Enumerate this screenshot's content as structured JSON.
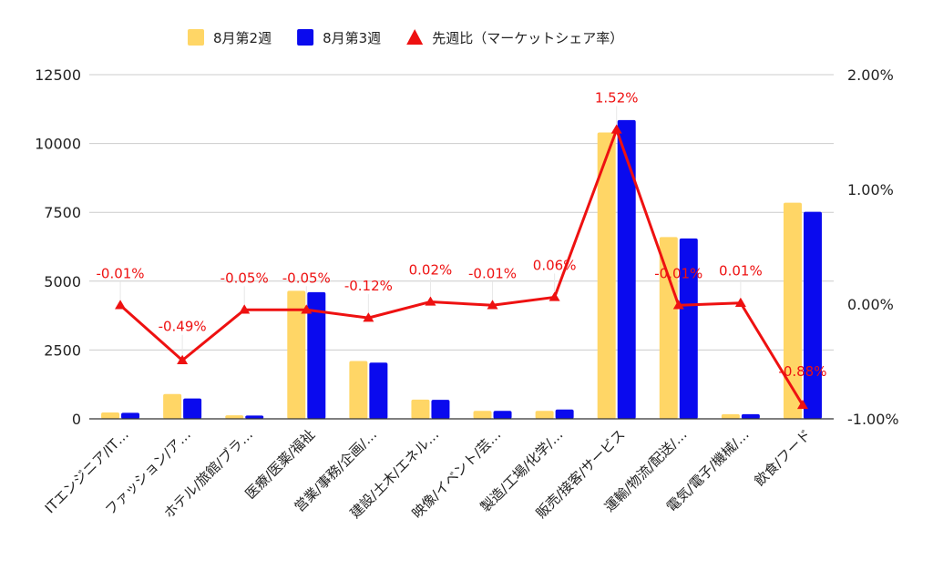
{
  "chart_data": {
    "type": "bar",
    "categories": [
      "ITエンジニア/IT…",
      "ファッション/ア…",
      "ホテル/旅館/ブラ…",
      "医療/医薬/福祉",
      "営業/事務/企画/…",
      "建設/土木/エネル…",
      "映像/イベント/芸…",
      "製造/工場/化学/…",
      "販売/接客/サービス",
      "運輸/物流/配送/…",
      "電気/電子/機械/…",
      "飲食/フード"
    ],
    "series": [
      {
        "name": "8月第2週",
        "type": "bar",
        "axis": "left",
        "color": "#FFD666",
        "values": [
          230,
          900,
          130,
          4650,
          2100,
          700,
          290,
          290,
          10400,
          6600,
          170,
          7850
        ]
      },
      {
        "name": "8月第3週",
        "type": "bar",
        "axis": "left",
        "color": "#0A0AEE",
        "values": [
          220,
          740,
          120,
          4600,
          2040,
          690,
          290,
          340,
          10850,
          6550,
          170,
          7520
        ]
      },
      {
        "name": "先週比（マーケットシェア率）",
        "type": "line",
        "axis": "right",
        "color": "#EE1111",
        "values": [
          -0.01,
          -0.49,
          -0.05,
          -0.05,
          -0.12,
          0.02,
          -0.01,
          0.06,
          1.52,
          -0.01,
          0.01,
          -0.88
        ],
        "labels": [
          "-0.01%",
          "-0.49%",
          "-0.05%",
          "-0.05%",
          "-0.12%",
          "0.02%",
          "-0.01%",
          "0.06%",
          "1.52%",
          "-0.01%",
          "0.01%",
          "-0.88%"
        ]
      }
    ],
    "y_left": {
      "ylim": [
        0,
        12500
      ],
      "ticks": [
        0,
        2500,
        5000,
        7500,
        10000,
        12500
      ],
      "tick_labels": [
        "0",
        "2500",
        "5000",
        "7500",
        "10000",
        "12500"
      ]
    },
    "y_right": {
      "ylim": [
        -1.0,
        2.0
      ],
      "ticks": [
        -1.0,
        0.0,
        1.0,
        2.0
      ],
      "tick_labels": [
        "-1.00%",
        "0.00%",
        "1.00%",
        "2.00%"
      ]
    },
    "legend": {
      "position": "top"
    },
    "grid": true,
    "title": "",
    "xlabel": "",
    "ylabel": ""
  }
}
